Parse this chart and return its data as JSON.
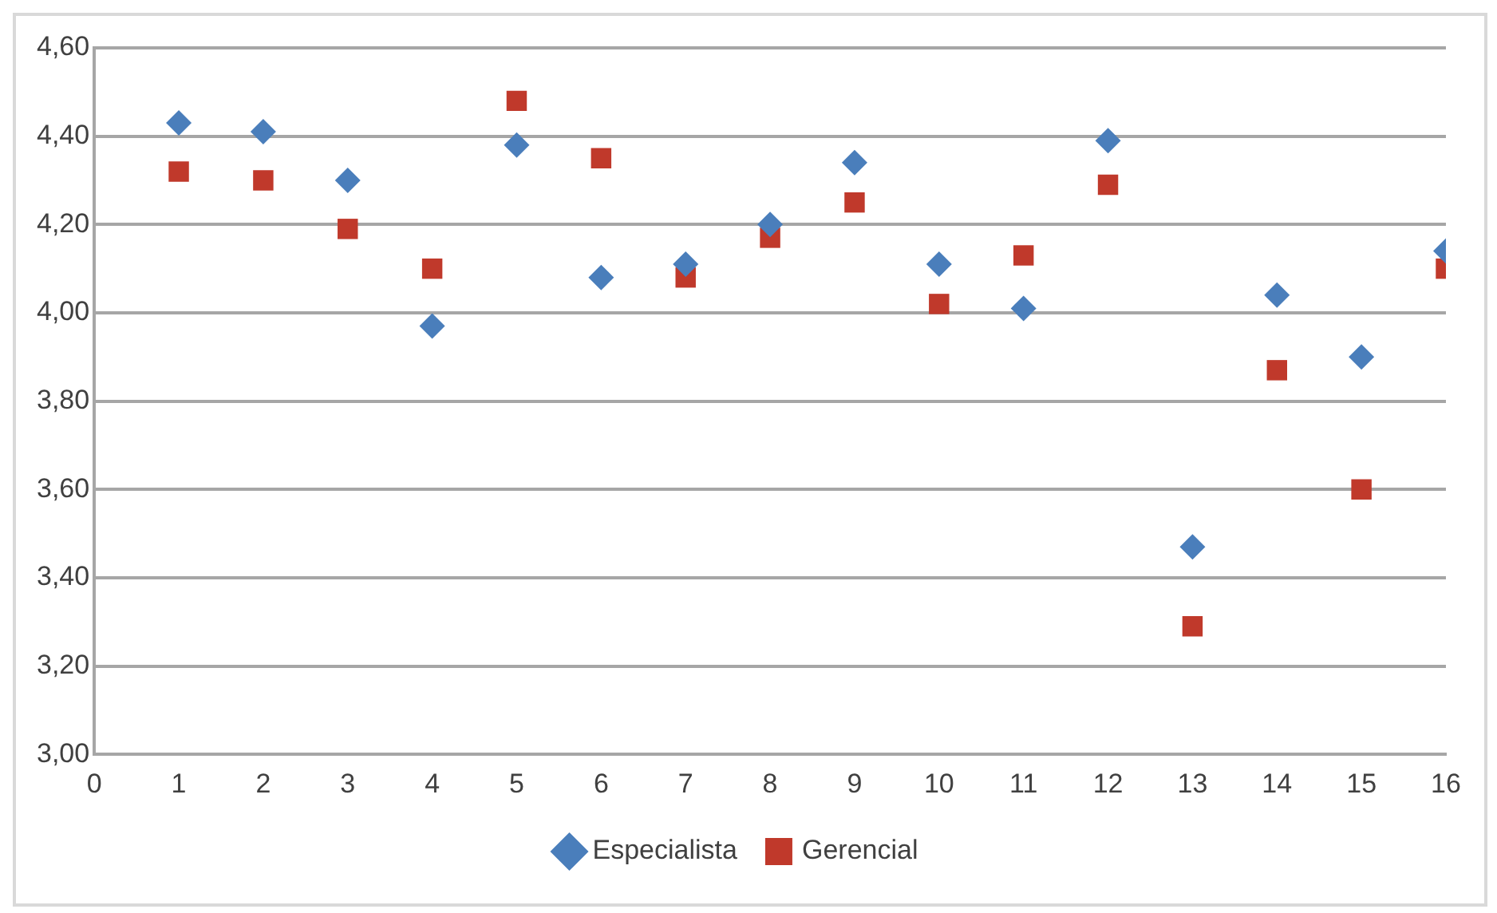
{
  "chart_data": {
    "type": "scatter",
    "x": [
      1,
      2,
      3,
      4,
      5,
      6,
      7,
      8,
      9,
      10,
      11,
      12,
      13,
      14,
      15,
      16
    ],
    "series": [
      {
        "name": "Especialista",
        "color": "#4a7ebb",
        "marker": "diamond",
        "values": [
          4.43,
          4.41,
          4.3,
          3.97,
          4.38,
          4.08,
          4.11,
          4.2,
          4.34,
          4.11,
          4.01,
          4.39,
          3.47,
          4.04,
          3.9,
          4.14
        ]
      },
      {
        "name": "Gerencial",
        "color": "#c0392b",
        "marker": "square",
        "values": [
          4.32,
          4.3,
          4.19,
          4.1,
          4.48,
          4.35,
          4.08,
          4.17,
          4.25,
          4.02,
          4.13,
          4.29,
          3.29,
          3.87,
          3.6,
          4.1
        ]
      }
    ],
    "xlim": [
      0,
      16
    ],
    "xticks": [
      0,
      1,
      2,
      3,
      4,
      5,
      6,
      7,
      8,
      9,
      10,
      11,
      12,
      13,
      14,
      15,
      16
    ],
    "ylim": [
      3,
      4.6
    ],
    "yticks": [
      {
        "value": 3,
        "label": "3,00"
      },
      {
        "value": 3.2,
        "label": "3,20"
      },
      {
        "value": 3.4,
        "label": "3,40"
      },
      {
        "value": 3.6,
        "label": "3,60"
      },
      {
        "value": 3.8,
        "label": "3,80"
      },
      {
        "value": 4,
        "label": "4,00"
      },
      {
        "value": 4.2,
        "label": "4,20"
      },
      {
        "value": 4.4,
        "label": "4,40"
      },
      {
        "value": 4.6,
        "label": "4,60"
      }
    ],
    "grid": "y",
    "legend": "bottom"
  }
}
